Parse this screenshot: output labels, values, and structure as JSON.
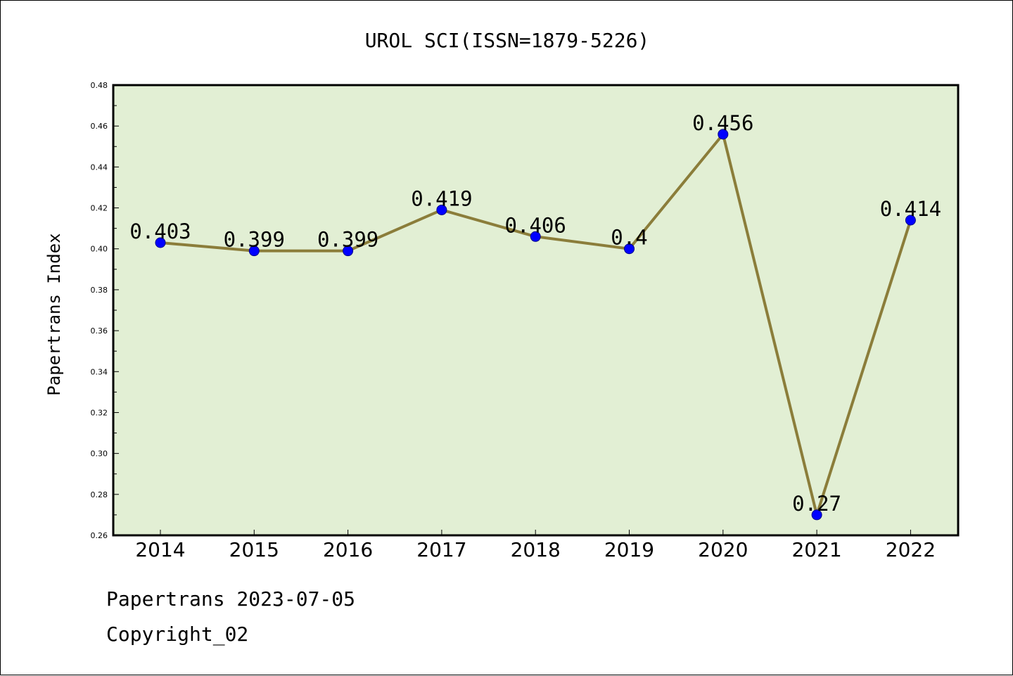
{
  "chart_data": {
    "type": "line",
    "title": "UROL SCI(ISSN=1879-5226)",
    "xlabel": "",
    "ylabel": "Papertrans Index",
    "categories": [
      "2014",
      "2015",
      "2016",
      "2017",
      "2018",
      "2019",
      "2020",
      "2021",
      "2022"
    ],
    "values": [
      0.403,
      0.399,
      0.399,
      0.419,
      0.406,
      0.4,
      0.456,
      0.27,
      0.414
    ],
    "data_labels": [
      "0.403",
      "0.399",
      "0.399",
      "0.419",
      "0.406",
      "0.4",
      "0.456",
      "0.27",
      "0.414"
    ],
    "ylim": [
      0.26,
      0.48
    ],
    "yticks": [
      "0.26",
      "0.28",
      "0.30",
      "0.32",
      "0.34",
      "0.36",
      "0.38",
      "0.40",
      "0.42",
      "0.44",
      "0.46",
      "0.48"
    ],
    "grid": false,
    "legend": "none",
    "colors": {
      "plot_background": "#e2efd4",
      "line": "#8b7d3a",
      "marker": "#0000ff"
    }
  },
  "footer": {
    "source": "Papertrans 2023-07-05",
    "copyright": "Copyright_02"
  }
}
